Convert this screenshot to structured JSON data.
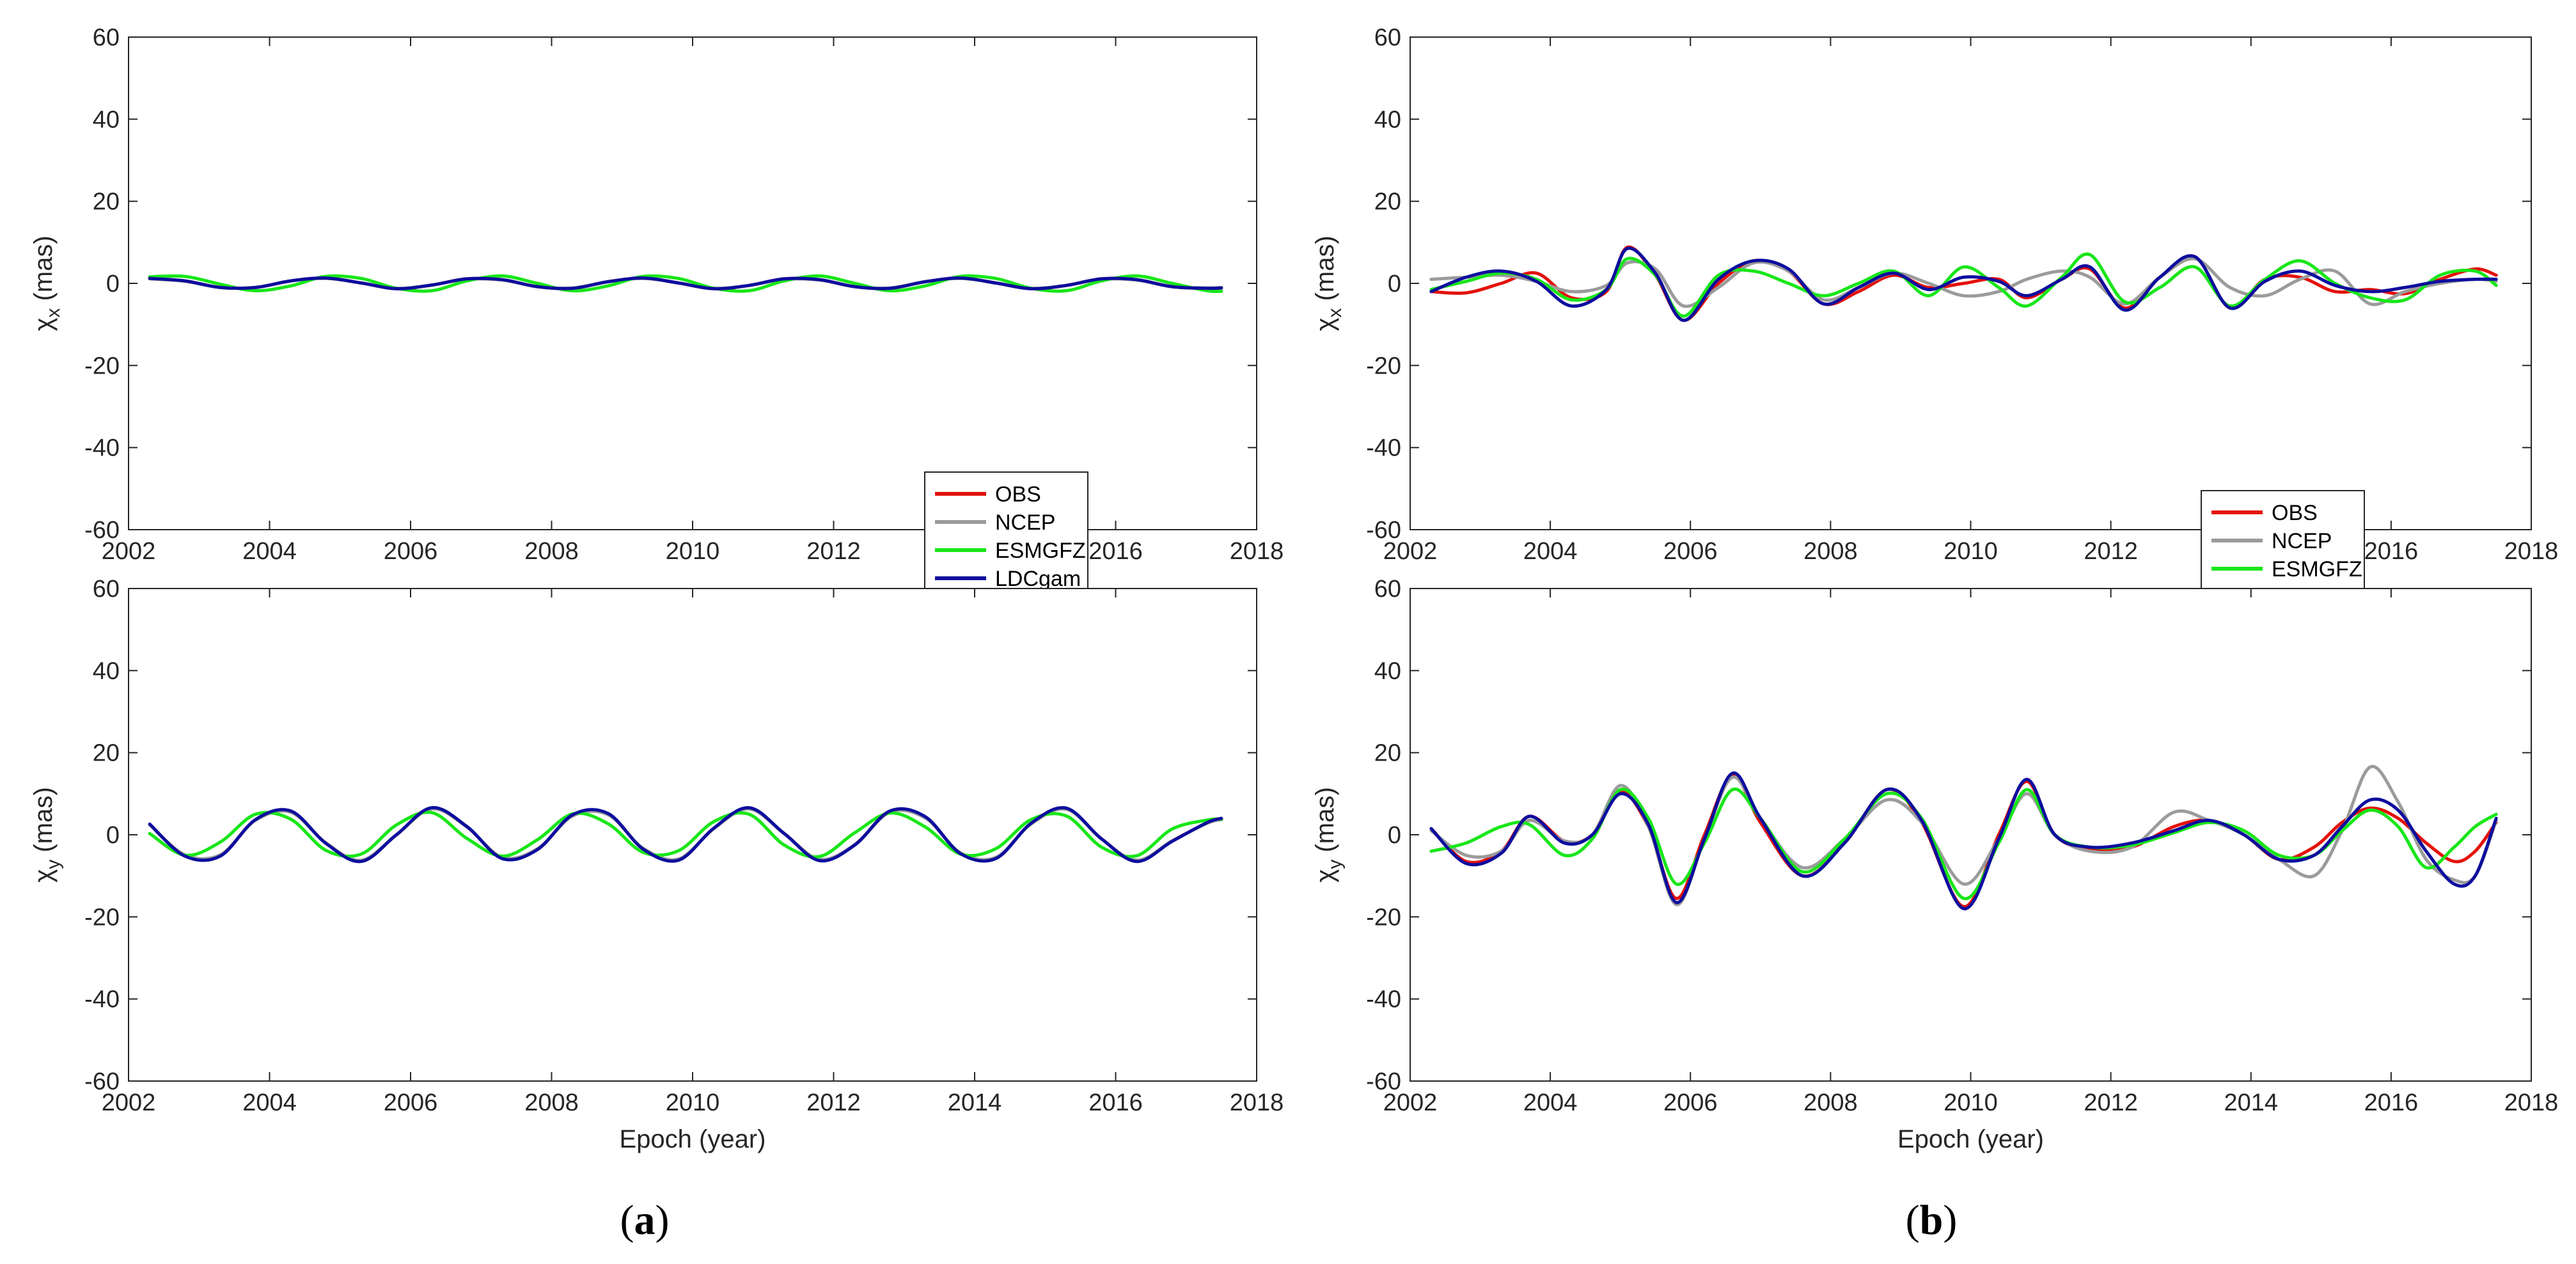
{
  "captions": {
    "a_open": "(",
    "a_letter": "a",
    "a_close": ")",
    "b_open": "(",
    "b_letter": "b",
    "b_close": ")"
  },
  "colors": {
    "OBS": "#e3120b",
    "NCEP": "#9b9b9b",
    "ESMGFZ": "#19e619",
    "LDCgam": "#0d0d9e"
  },
  "chart_data": [
    {
      "id": "a-top",
      "type": "line",
      "panel": "a",
      "ylabel": "χx (mas)",
      "xlabel": "",
      "xlim": [
        2002,
        2018
      ],
      "ylim": [
        -60,
        60
      ],
      "xticks": [
        2002,
        2004,
        2006,
        2008,
        2010,
        2012,
        2014,
        2016,
        2018
      ],
      "yticks": [
        -60,
        -40,
        -20,
        0,
        20,
        40,
        60
      ],
      "legend": "bottom-right",
      "x": [
        2002.3,
        2002.8,
        2003.3,
        2003.8,
        2004.3,
        2004.8,
        2005.3,
        2005.8,
        2006.3,
        2006.8,
        2007.3,
        2007.8,
        2008.3,
        2008.8,
        2009.3,
        2009.8,
        2010.3,
        2010.8,
        2011.3,
        2011.8,
        2012.3,
        2012.8,
        2013.3,
        2013.8,
        2014.3,
        2014.8,
        2015.3,
        2015.8,
        2016.3,
        2016.8,
        2017.3,
        2017.5
      ],
      "series": [
        {
          "name": "OBS",
          "values": [
            1.2,
            0.6,
            -1.0,
            -1.0,
            0.6,
            1.3,
            0.1,
            -1.3,
            -0.4,
            1.1,
            0.9,
            -0.8,
            -1.2,
            0.4,
            1.3,
            0.1,
            -1.3,
            -0.5,
            1.1,
            0.9,
            -0.8,
            -1.2,
            0.4,
            1.3,
            0.1,
            -1.3,
            -0.5,
            1.1,
            0.9,
            -0.8,
            -1.2,
            -1.1
          ]
        },
        {
          "name": "NCEP",
          "values": [
            1.1,
            0.5,
            -1.0,
            -1.0,
            0.6,
            1.2,
            0.1,
            -1.2,
            -0.4,
            1.0,
            0.8,
            -0.8,
            -1.1,
            0.4,
            1.2,
            0.1,
            -1.2,
            -0.5,
            1.0,
            0.8,
            -0.8,
            -1.1,
            0.4,
            1.2,
            0.1,
            -1.2,
            -0.5,
            1.0,
            0.8,
            -0.8,
            -1.1,
            -1.0
          ]
        },
        {
          "name": "ESMGFZ",
          "values": [
            1.6,
            1.7,
            -0.2,
            -1.8,
            -0.6,
            1.7,
            1.2,
            -1.2,
            -1.8,
            0.6,
            1.8,
            0.0,
            -1.8,
            -0.6,
            1.7,
            1.2,
            -1.2,
            -1.8,
            0.6,
            1.8,
            0.0,
            -1.8,
            -0.6,
            1.7,
            1.2,
            -1.2,
            -1.8,
            0.6,
            1.8,
            0.0,
            -1.8,
            -1.9
          ]
        },
        {
          "name": "LDCgam",
          "values": [
            1.2,
            0.6,
            -1.0,
            -1.0,
            0.6,
            1.3,
            0.1,
            -1.3,
            -0.4,
            1.1,
            0.9,
            -0.8,
            -1.2,
            0.4,
            1.3,
            0.1,
            -1.3,
            -0.5,
            1.1,
            0.9,
            -0.8,
            -1.2,
            0.4,
            1.3,
            0.1,
            -1.3,
            -0.5,
            1.1,
            0.9,
            -0.8,
            -1.2,
            -1.1
          ]
        }
      ]
    },
    {
      "id": "a-bottom",
      "type": "line",
      "panel": "a",
      "ylabel": "χy (mas)",
      "xlabel": "Epoch (year)",
      "xlim": [
        2002,
        2018
      ],
      "ylim": [
        -60,
        60
      ],
      "xticks": [
        2002,
        2004,
        2006,
        2008,
        2010,
        2012,
        2014,
        2016,
        2018
      ],
      "yticks": [
        -60,
        -40,
        -20,
        0,
        20,
        40,
        60
      ],
      "legend": "none",
      "x": [
        2002.3,
        2002.8,
        2003.3,
        2003.8,
        2004.3,
        2004.8,
        2005.3,
        2005.8,
        2006.3,
        2006.8,
        2007.3,
        2007.8,
        2008.3,
        2008.8,
        2009.3,
        2009.8,
        2010.3,
        2010.8,
        2011.3,
        2011.8,
        2012.3,
        2012.8,
        2013.3,
        2013.8,
        2014.3,
        2014.8,
        2015.3,
        2015.8,
        2016.3,
        2016.8,
        2017.3,
        2017.5
      ],
      "series": [
        {
          "name": "OBS",
          "values": [
            2.5,
            -5.0,
            -5.0,
            3.6,
            5.6,
            -2.0,
            -6.3,
            0.0,
            6.4,
            1.9,
            -5.6,
            -3.5,
            4.7,
            5.0,
            -3.4,
            -6.0,
            1.5,
            6.4,
            0.3,
            -6.1,
            -2.4,
            5.6,
            4.2,
            -4.5,
            -5.6,
            2.7,
            6.3,
            -1.0,
            -6.3,
            -1.5,
            2.9,
            3.8
          ]
        },
        {
          "name": "NCEP",
          "values": [
            2.4,
            -4.9,
            -4.9,
            3.5,
            5.5,
            -2.0,
            -6.2,
            0.0,
            6.3,
            1.9,
            -5.5,
            -3.4,
            4.6,
            4.9,
            -3.3,
            -5.9,
            1.5,
            6.3,
            0.3,
            -6.0,
            -2.4,
            5.5,
            4.1,
            -4.4,
            -5.5,
            2.6,
            6.2,
            -1.0,
            -6.2,
            -1.5,
            2.8,
            3.7
          ]
        },
        {
          "name": "ESMGFZ",
          "values": [
            0.3,
            -5.0,
            -1.8,
            5.0,
            3.8,
            -3.8,
            -4.7,
            2.4,
            5.4,
            -0.9,
            -5.2,
            -1.2,
            5.1,
            2.7,
            -4.3,
            -3.9,
            3.2,
            5.0,
            -2.5,
            -5.3,
            0.5,
            5.3,
            1.9,
            -4.7,
            -3.4,
            3.7,
            4.6,
            -3.0,
            -5.1,
            1.4,
            3.6,
            3.8
          ]
        },
        {
          "name": "LDCgam",
          "values": [
            2.6,
            -5.2,
            -5.2,
            3.7,
            5.8,
            -2.1,
            -6.5,
            0.0,
            6.6,
            2.0,
            -5.8,
            -3.6,
            4.9,
            5.2,
            -3.5,
            -6.2,
            1.6,
            6.6,
            0.3,
            -6.3,
            -2.5,
            5.8,
            4.4,
            -4.6,
            -5.8,
            2.8,
            6.5,
            -1.0,
            -6.5,
            -1.6,
            3.0,
            4.0
          ]
        }
      ]
    },
    {
      "id": "b-top",
      "type": "line",
      "panel": "b",
      "ylabel": "χx (mas)",
      "xlabel": "",
      "xlim": [
        2002,
        2018
      ],
      "ylim": [
        -60,
        60
      ],
      "xticks": [
        2002,
        2004,
        2006,
        2008,
        2010,
        2012,
        2014,
        2016,
        2018
      ],
      "yticks": [
        -60,
        -40,
        -20,
        0,
        20,
        40,
        60
      ],
      "legend": "bottom-right",
      "x": [
        2002.3,
        2002.8,
        2003.3,
        2003.8,
        2004.3,
        2004.8,
        2005.1,
        2005.5,
        2005.9,
        2006.4,
        2006.9,
        2007.4,
        2007.9,
        2008.4,
        2008.9,
        2009.4,
        2009.9,
        2010.4,
        2010.8,
        2011.3,
        2011.7,
        2012.2,
        2012.7,
        2013.2,
        2013.7,
        2014.2,
        2014.7,
        2015.2,
        2015.7,
        2016.2,
        2016.7,
        2017.2,
        2017.5
      ],
      "series": [
        {
          "name": "OBS",
          "values": [
            -2.0,
            -2.3,
            0.0,
            2.5,
            -3.5,
            -2.0,
            8.8,
            2.0,
            -9.0,
            0.0,
            5.5,
            3.0,
            -5.0,
            -2.0,
            2.0,
            -1.0,
            0.0,
            1.0,
            -3.5,
            1.0,
            3.5,
            -6.0,
            1.5,
            6.5,
            -6.0,
            1.0,
            1.5,
            -2.0,
            -1.5,
            -2.5,
            1.0,
            3.5,
            2.0
          ]
        },
        {
          "name": "NCEP",
          "values": [
            1.0,
            1.5,
            2.0,
            0.5,
            -2.0,
            -0.5,
            5.0,
            3.5,
            -5.5,
            -1.0,
            5.0,
            3.0,
            -4.0,
            -1.0,
            2.5,
            0.0,
            -3.0,
            -2.0,
            1.0,
            3.0,
            1.5,
            -5.0,
            1.5,
            6.0,
            -1.0,
            -3.0,
            1.0,
            3.0,
            -5.0,
            -2.0,
            0.0,
            1.0,
            0.5
          ]
        },
        {
          "name": "ESMGFZ",
          "values": [
            -1.5,
            0.5,
            2.5,
            1.0,
            -4.0,
            -1.5,
            6.0,
            2.0,
            -8.0,
            2.0,
            3.0,
            0.0,
            -3.0,
            0.0,
            3.0,
            -3.0,
            4.0,
            -1.0,
            -5.5,
            1.5,
            7.0,
            -4.5,
            -1.0,
            4.0,
            -5.5,
            1.0,
            5.5,
            0.0,
            -3.5,
            -4.0,
            2.0,
            3.0,
            -0.5
          ]
        },
        {
          "name": "LDCgam",
          "values": [
            -2.0,
            1.5,
            3.0,
            0.5,
            -5.5,
            -1.5,
            8.5,
            2.5,
            -9.0,
            1.0,
            5.5,
            3.5,
            -5.0,
            -1.0,
            2.5,
            -1.5,
            1.5,
            0.5,
            -3.0,
            1.0,
            4.0,
            -6.5,
            1.5,
            6.5,
            -6.0,
            0.5,
            3.0,
            -0.5,
            -2.0,
            -1.0,
            0.5,
            1.0,
            1.0
          ]
        }
      ]
    },
    {
      "id": "b-bottom",
      "type": "line",
      "panel": "b",
      "ylabel": "χy (mas)",
      "xlabel": "Epoch (year)",
      "xlim": [
        2002,
        2018
      ],
      "ylim": [
        -60,
        60
      ],
      "xticks": [
        2002,
        2004,
        2006,
        2008,
        2010,
        2012,
        2014,
        2016,
        2018
      ],
      "yticks": [
        -60,
        -40,
        -20,
        0,
        20,
        40,
        60
      ],
      "legend": "none",
      "x": [
        2002.3,
        2002.8,
        2003.3,
        2003.7,
        2004.2,
        2004.6,
        2005.0,
        2005.4,
        2005.8,
        2006.2,
        2006.6,
        2007.0,
        2007.6,
        2008.2,
        2008.8,
        2009.3,
        2009.9,
        2010.4,
        2010.8,
        2011.2,
        2011.7,
        2012.3,
        2012.9,
        2013.4,
        2013.9,
        2014.4,
        2014.9,
        2015.3,
        2015.7,
        2016.1,
        2016.5,
        2016.9,
        2017.2,
        2017.5
      ],
      "series": [
        {
          "name": "OBS",
          "values": [
            1.5,
            -6.5,
            -4.0,
            4.5,
            -1.5,
            0.0,
            10.5,
            2.0,
            -15.5,
            0.0,
            14.5,
            3.0,
            -10.0,
            -2.0,
            11.0,
            3.0,
            -17.5,
            0.0,
            13.0,
            0.0,
            -3.5,
            -3.0,
            2.0,
            3.5,
            0.0,
            -6.0,
            -3.0,
            3.0,
            6.5,
            4.0,
            -2.0,
            -6.5,
            -4.0,
            3.0
          ]
        },
        {
          "name": "NCEP",
          "values": [
            1.0,
            -5.0,
            -4.0,
            3.5,
            -1.5,
            0.0,
            12.0,
            2.0,
            -17.0,
            -1.0,
            14.0,
            4.0,
            -8.0,
            -1.0,
            8.5,
            3.0,
            -12.0,
            -1.0,
            10.0,
            0.0,
            -4.0,
            -3.0,
            5.5,
            3.5,
            0.0,
            -6.0,
            -10.0,
            1.0,
            16.5,
            8.0,
            -6.0,
            -11.0,
            -10.0,
            3.5
          ]
        },
        {
          "name": "ESMGFZ",
          "values": [
            -4.0,
            -2.0,
            2.0,
            2.5,
            -5.0,
            -1.0,
            11.0,
            4.0,
            -12.0,
            -2.0,
            11.0,
            4.0,
            -9.0,
            -1.0,
            10.0,
            4.0,
            -15.5,
            -2.0,
            11.0,
            0.0,
            -3.0,
            -2.5,
            0.5,
            3.0,
            1.0,
            -5.0,
            -5.0,
            1.0,
            6.0,
            2.0,
            -8.0,
            -3.0,
            2.0,
            5.0
          ]
        },
        {
          "name": "LDCgam",
          "values": [
            1.5,
            -7.0,
            -4.5,
            4.5,
            -2.0,
            0.0,
            10.0,
            2.5,
            -16.5,
            -1.0,
            15.0,
            4.0,
            -10.0,
            -2.0,
            11.0,
            3.5,
            -18.0,
            -1.0,
            13.5,
            0.0,
            -3.0,
            -2.0,
            1.0,
            3.5,
            0.0,
            -6.0,
            -5.0,
            2.0,
            8.5,
            6.0,
            -4.0,
            -12.0,
            -10.0,
            4.0
          ]
        }
      ]
    }
  ]
}
